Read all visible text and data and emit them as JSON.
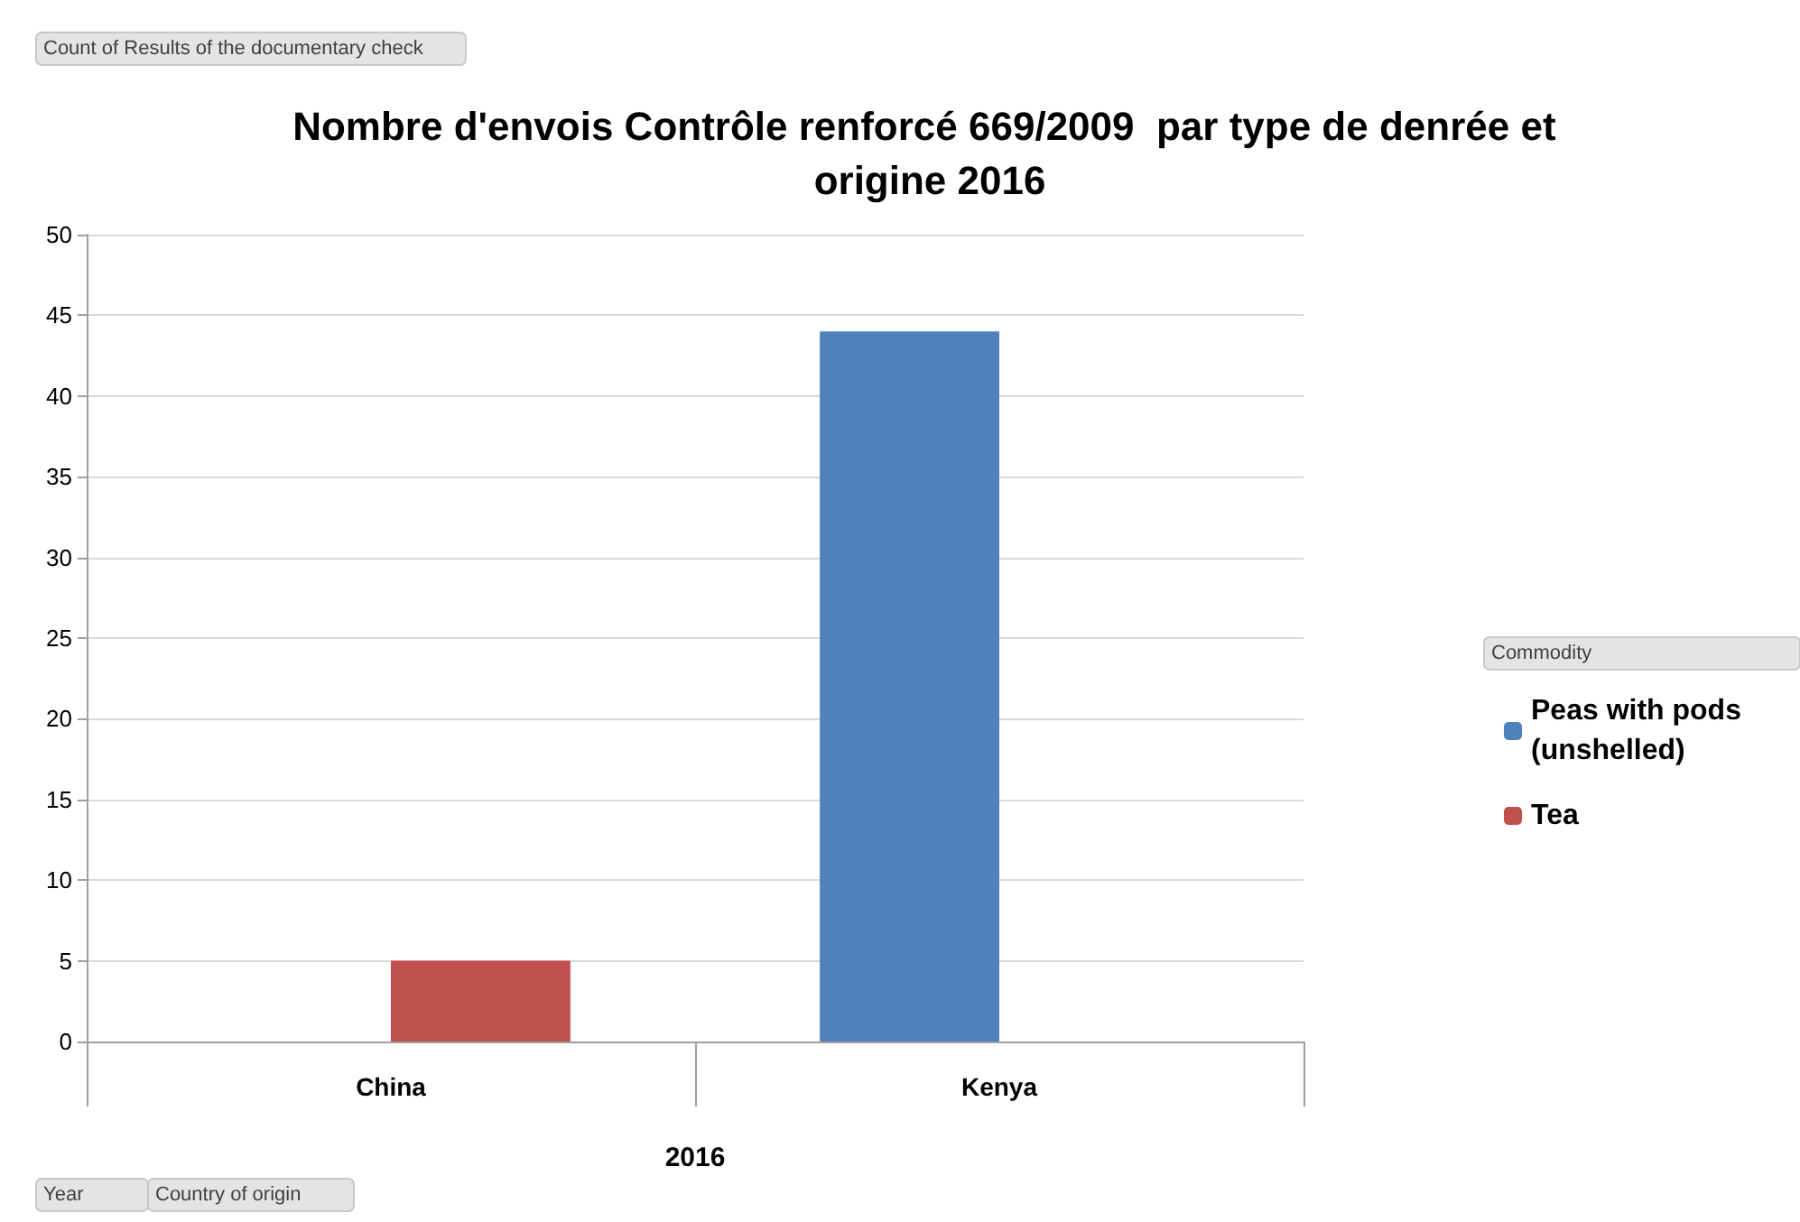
{
  "chart_data": {
    "type": "bar",
    "title": "Nombre d'envois Contrôle renforcé 669/2009  par type de denrée et origine 2016",
    "categories": [
      "China",
      "Kenya"
    ],
    "xlabel": "2016",
    "legend_title": "Commodity",
    "series": [
      {
        "name": "Peas with pods (unshelled)",
        "color": "#4f81bd",
        "values": [
          null,
          44
        ]
      },
      {
        "name": "Tea",
        "color": "#c0504d",
        "values": [
          5,
          null
        ]
      }
    ],
    "ylim": [
      0,
      50
    ],
    "yticks": [
      0,
      5,
      10,
      15,
      20,
      25,
      30,
      35,
      40,
      45,
      50
    ],
    "grid": "y",
    "legend": "right",
    "annotations": [
      "Count of Results of the documentary check",
      "Year",
      "Country of origin"
    ]
  }
}
